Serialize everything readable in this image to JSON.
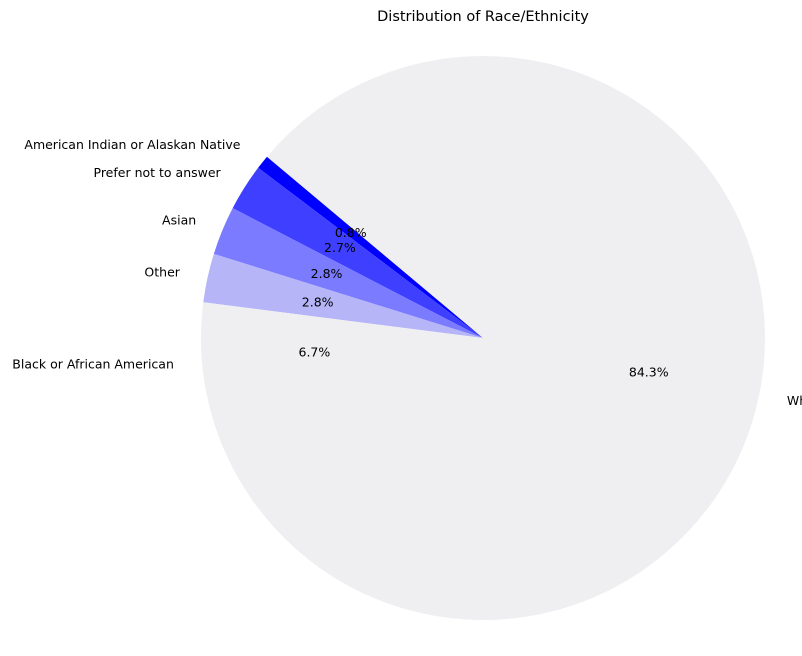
{
  "chart_data": {
    "type": "pie",
    "title": "Distribution of Race/Ethnicity",
    "slices": [
      {
        "label": "American Indian or Alaskan Native",
        "value": 0.8,
        "pct_label": "0.8%",
        "color": "#0000ff"
      },
      {
        "label": "Prefer not to answer",
        "value": 2.7,
        "pct_label": "2.7%",
        "color": "#3f3fff"
      },
      {
        "label": "Asian",
        "value": 2.8,
        "pct_label": "2.8%",
        "color": "#7b7bff"
      },
      {
        "label": "Other",
        "value": 2.8,
        "pct_label": "2.8%",
        "color": "#b5b5f8"
      },
      {
        "label": "Black or African American",
        "value": 6.7,
        "pct_label": "6.7%",
        "color": "#efeff2"
      },
      {
        "label": "White",
        "value": 84.3,
        "pct_label": "84.3%",
        "color": "#efeff2"
      }
    ],
    "start_angle_deg": 140,
    "direction": "counterclockwise",
    "legend": "none"
  }
}
